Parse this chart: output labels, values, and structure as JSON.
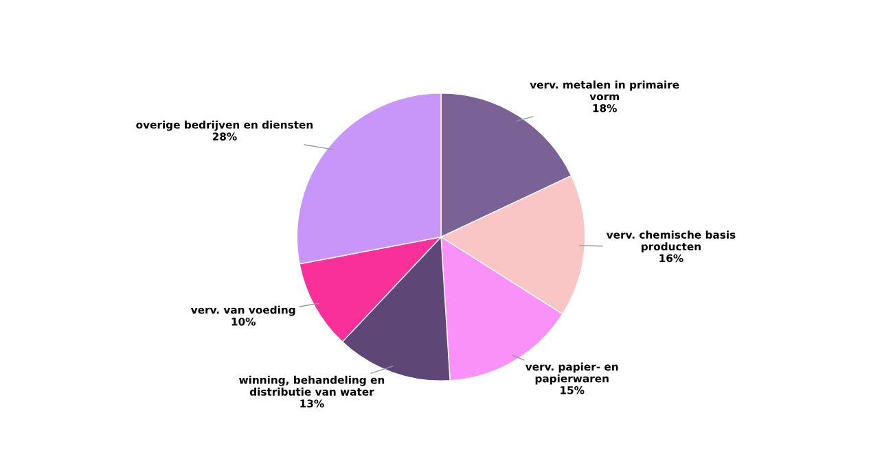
{
  "chart_data": {
    "type": "pie",
    "categories": [
      "verv. metalen in primaire\nvorm",
      "verv. chemische basis\nproducten",
      "verv. papier- en\npapierwaren",
      "winning, behandeling en\ndistributie van water",
      "verv. van voeding",
      "overige bedrijven en diensten"
    ],
    "values": [
      18,
      16,
      15,
      13,
      10,
      28
    ],
    "value_labels": [
      "18%",
      "16%",
      "15%",
      "13%",
      "10%",
      "28%"
    ],
    "colors": [
      "#7a6296",
      "#f9c5c5",
      "#f991f9",
      "#5e4677",
      "#f9309a",
      "#c896f9"
    ]
  }
}
